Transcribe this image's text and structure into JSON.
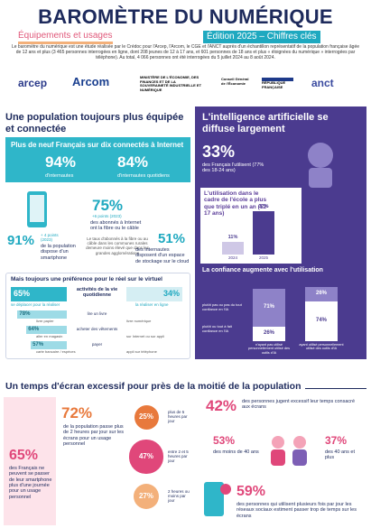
{
  "header": {
    "title": "BAROMÈTRE DU NUMÉRIQUE",
    "subtitle": "Équipements et usages",
    "edition": "Édition 2025 – Chiffres clés",
    "intro": "Le baromètre du numérique est une étude réalisée par le Crédoc pour l'Arcep, l'Arcom, le CGE et l'ANCT auprès d'un échantillon représentatif de la population française âgée de 12 ans et plus (3 465 personnes interrogées en ligne, dont 208 jeunes de 12 à 17 ans, et 601 personnes de 18 ans et plus « éloignées du numérique » interrogées par téléphone). Au total, 4 066 personnes ont été interrogées du 5 juillet 2024 au 8 août 2024."
  },
  "logos": [
    "arcep",
    "Arcom",
    "MINISTÈRE DE L'ÉCONOMIE, DES FINANCES ET DE LA SOUVERAINETÉ INDUSTRIELLE ET NUMÉRIQUE",
    "Conseil Général de l'Économie",
    "RÉPUBLIQUE FRANÇAISE",
    "anct"
  ],
  "equipement": {
    "heading": "Une population toujours plus équipée et connectée",
    "connected": {
      "heading": "Plus de neuf Français sur dix connectés à Internet",
      "stats": [
        {
          "value": "94%",
          "label": "d'internautes"
        },
        {
          "value": "84%",
          "label": "d'internautes quotidiens"
        }
      ]
    },
    "fibre": {
      "value": "75%",
      "change": "+6 points (2023)",
      "label": "des abonnés à Internet ont la fibre ou le câble",
      "note": "Le taux d'abonnés à la fibre ou au câble dans les communes rurales demeure moins élevé que dans les grandes agglomérations"
    },
    "smartphone": {
      "value": "91%",
      "change": "+ 4 points (2023)",
      "label": "de la population dispose d'un smartphone"
    },
    "cloud": {
      "value": "51%",
      "label": "des internautes disposent d'un espace de stockage sur le cloud"
    },
    "preference": {
      "heading": "Mais toujours une préférence pour le réel sur le virtuel",
      "header": {
        "left": "65%",
        "left_label": "se déplacer pour la réaliser",
        "middle": "activités de la vie quotidienne",
        "right": "34%",
        "right_label": "la réaliser en ligne"
      },
      "rows": [
        {
          "activity": "lire un livre",
          "left": 78,
          "left_label": "78%",
          "left_text": "livre papier",
          "right_text": "livre numérique"
        },
        {
          "activity": "acheter des vêtements",
          "left": 64,
          "left_label": "64%",
          "left_text": "aller en magasin",
          "right_text": "sur Internet ou sur appli"
        },
        {
          "activity": "payer",
          "left": 57,
          "left_label": "57%",
          "left_text": "carte bancaire / espèces",
          "right_text": "appli sur téléphone"
        }
      ]
    }
  },
  "ai": {
    "heading": "L'intelligence artificielle se diffuse largement",
    "usage": {
      "value": "33%",
      "label": "des Français l'utilisent (77% des 18-24 ans)"
    },
    "school": {
      "heading": "L'utilisation dans le cadre de l'école a plus que triplé en un an (12-17 ans)",
      "bars": [
        {
          "year": "2024",
          "value": 11,
          "label": "11%"
        },
        {
          "year": "2025",
          "value": 37,
          "label": "37%"
        }
      ]
    },
    "trust": {
      "heading": "La confiance augmente avec l'utilisation",
      "top_label": "plutôt pas ou pas du tout confiance en l'IA",
      "bottom_label": "plutôt ou tout à fait confiance en l'IA",
      "groups": [
        {
          "label": "n'ayant pas utilisé personnellement utilisé des outils d'IA",
          "distrust": 71,
          "distrust_label": "71%",
          "trust": 26,
          "trust_label": "26%"
        },
        {
          "label": "ayant utilisé personnellement utilisé des outils d'IA",
          "distrust": 26,
          "distrust_label": "26%",
          "trust": 74,
          "trust_label": "74%"
        }
      ]
    }
  },
  "ecran": {
    "heading": "Un temps d'écran excessif pour près de la moitié de la population",
    "smartphone": {
      "value": "65%",
      "label": "des Français ne peuvent se passer de leur smartphone plus d'une journée pour un usage personnel"
    },
    "time": {
      "value": "72%",
      "label": "de la population passe plus de 2 heures par jour sur les écrans pour un usage personnel",
      "circles": [
        {
          "value": 25,
          "value_label": "25%",
          "label": "plus de 5 heures par jour"
        },
        {
          "value": 47,
          "value_label": "47%",
          "label": "entre 2 et 5 heures par jour"
        },
        {
          "value": 27,
          "value_label": "27%",
          "label": "2 heures ou moins par jour"
        }
      ]
    },
    "excessive": {
      "value": "42%",
      "label": "des personnes jugent excessif leur temps consacré aux écrans",
      "groups": [
        {
          "value": "53%",
          "label": "des moins de 40 ans"
        },
        {
          "value": "37%",
          "label": "des 40 ans et plus"
        }
      ]
    },
    "social": {
      "value": "59%",
      "label": "des personnes qui utilisent plusieurs fois par jour les réseaux sociaux estiment passer trop de temps sur les écrans"
    }
  }
}
